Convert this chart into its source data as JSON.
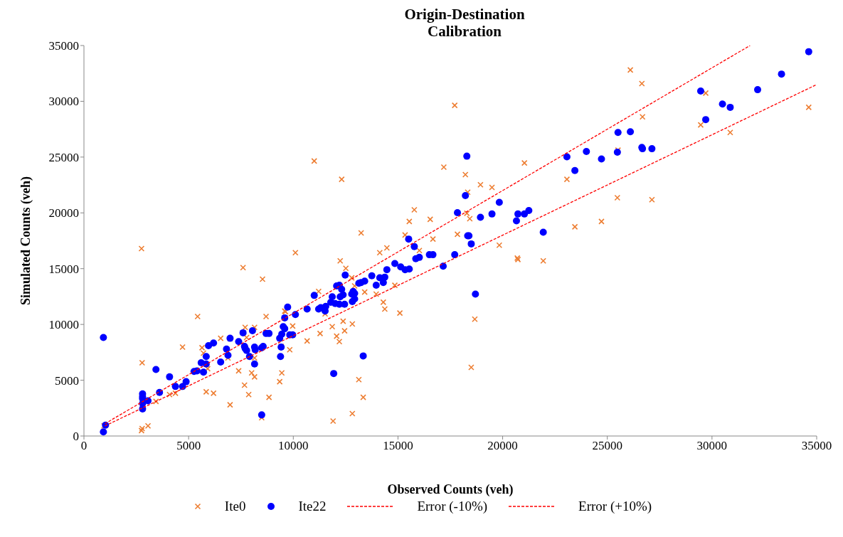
{
  "chart_data": {
    "type": "scatter",
    "title": "Origin-Destination\nCalibration",
    "xlabel": "Observed Counts (veh)",
    "ylabel": "Simulated Counts (veh)",
    "xlim": [
      0,
      35000
    ],
    "ylim": [
      0,
      35000
    ],
    "xticks": [
      0,
      5000,
      10000,
      15000,
      20000,
      25000,
      30000,
      35000
    ],
    "yticks": [
      0,
      5000,
      10000,
      15000,
      20000,
      25000,
      30000,
      35000
    ],
    "grid": false,
    "legend": "bottom",
    "series": [
      {
        "name": "Ite0",
        "color": "#ed7d31",
        "marker": "cross",
        "x": [
          7600,
          8530,
          5430,
          4710,
          2780,
          6530,
          5640,
          5710,
          9590,
          8700,
          9970,
          7700,
          8150,
          7770,
          6880,
          7390,
          8010,
          8150,
          9420,
          9830,
          9450,
          9350,
          7670,
          7870,
          8840,
          8490,
          6980,
          6190,
          5840,
          4370,
          4090,
          3440,
          2750,
          2780,
          3060,
          960,
          5910,
          8150,
          13240,
          10100,
          12240,
          12510,
          12790,
          14130,
          14470,
          15340,
          16020,
          16670,
          17840,
          12930,
          13410,
          14850,
          13960,
          14300,
          14370,
          15090,
          11210,
          11520,
          12380,
          12820,
          11860,
          12450,
          11280,
          12070,
          12200,
          10660,
          9630,
          13130,
          13340,
          12820,
          11900,
          17710,
          11000,
          12310,
          17190,
          18220,
          18940,
          19490,
          21040,
          18330,
          18290,
          18430,
          16540,
          15780,
          15540,
          19840,
          20700,
          20730,
          26100,
          26650,
          29700,
          26680,
          29460,
          34620,
          30870,
          25510,
          23070,
          25480,
          27130,
          24720,
          23450,
          21940,
          18670,
          18500,
          2750
        ],
        "values": [
          15090,
          14060,
          10710,
          7970,
          6570,
          8760,
          7910,
          7430,
          11200,
          10710,
          9860,
          9740,
          9740,
          8830,
          7000,
          5840,
          5660,
          5300,
          8030,
          7730,
          5660,
          4870,
          4560,
          3710,
          3470,
          1640,
          2800,
          3830,
          3960,
          3830,
          3710,
          3100,
          490,
          670,
          910,
          910,
          6030,
          7000,
          18200,
          16430,
          15700,
          15030,
          14180,
          16430,
          16860,
          18020,
          16620,
          17650,
          18080,
          13450,
          12900,
          13510,
          12720,
          11990,
          11380,
          11020,
          12960,
          10950,
          10290,
          10040,
          9800,
          9430,
          9190,
          8950,
          8460,
          8520,
          11140,
          5050,
          3470,
          2010,
          1340,
          29640,
          24650,
          23010,
          24100,
          23430,
          22520,
          22280,
          24470,
          21850,
          19960,
          19480,
          19420,
          20270,
          19230,
          17100,
          15950,
          15820,
          32810,
          31590,
          30740,
          28610,
          27880,
          29460,
          27210,
          25620,
          23010,
          21360,
          21180,
          19230,
          18750,
          15700,
          10470,
          6150,
          16800
        ]
      },
      {
        "name": "Ite22",
        "color": "#0000ff",
        "marker": "circle",
        "x": [
          930,
          930,
          1030,
          2800,
          2800,
          2800,
          2800,
          2800,
          3060,
          3440,
          3610,
          4090,
          4370,
          4710,
          4880,
          5260,
          5400,
          5710,
          5600,
          5840,
          5840,
          5950,
          6190,
          6530,
          6810,
          6880,
          6980,
          7390,
          7600,
          7670,
          7700,
          7770,
          7910,
          8050,
          8150,
          8180,
          8150,
          8490,
          8560,
          8490,
          8700,
          8840,
          9350,
          9420,
          9390,
          9450,
          9520,
          9590,
          9590,
          9730,
          9830,
          9970,
          10100,
          11930,
          13340,
          11000,
          10660,
          11210,
          11310,
          11520,
          11550,
          11860,
          11790,
          12000,
          12200,
          12450,
          12070,
          12200,
          12310,
          12240,
          12380,
          12480,
          12790,
          12860,
          12930,
          12930,
          12820,
          13130,
          13240,
          13410,
          13750,
          13960,
          14130,
          14300,
          14370,
          14470,
          14850,
          15130,
          15340,
          15540,
          15510,
          15780,
          15850,
          16020,
          16500,
          16670,
          17160,
          17710,
          18290,
          18220,
          17840,
          18940,
          19490,
          19840,
          20730,
          20660,
          21040,
          21250,
          18330,
          18390,
          18500,
          18700,
          21940,
          23070,
          23450,
          24000,
          24720,
          25510,
          25480,
          26100,
          26650,
          26680,
          27130,
          29460,
          29700,
          30500,
          30870,
          32180,
          33320,
          34620
        ],
        "values": [
          8830,
          370,
          970,
          3770,
          3530,
          3350,
          2920,
          2430,
          3160,
          5960,
          3900,
          5300,
          4440,
          4440,
          4870,
          5780,
          5840,
          5720,
          6570,
          6450,
          7120,
          8100,
          8340,
          6630,
          7790,
          7240,
          8760,
          8460,
          9250,
          8030,
          7850,
          7670,
          7120,
          9430,
          7970,
          7730,
          6450,
          7910,
          8030,
          1890,
          9190,
          9190,
          8760,
          7970,
          7120,
          9130,
          9800,
          9620,
          10590,
          11560,
          9070,
          9070,
          10890,
          5600,
          7180,
          12600,
          11380,
          11380,
          11500,
          11200,
          11620,
          12480,
          11990,
          11870,
          11810,
          11810,
          13450,
          13510,
          13150,
          12480,
          12660,
          14420,
          12720,
          12960,
          12780,
          12290,
          12050,
          13690,
          13760,
          13880,
          14360,
          13510,
          14180,
          13760,
          14240,
          14910,
          15460,
          15160,
          14910,
          14970,
          17650,
          16980,
          15890,
          16010,
          16250,
          16250,
          15220,
          16250,
          25080,
          21550,
          20020,
          19600,
          19900,
          20940,
          19900,
          19290,
          19900,
          20210,
          17950,
          17950,
          17220,
          12720,
          18260,
          25020,
          23800,
          25500,
          24830,
          27210,
          25440,
          27270,
          25870,
          25750,
          25750,
          30920,
          28360,
          29760,
          29460,
          31040,
          32440,
          34450
        ]
      },
      {
        "name": "Error (-10%)",
        "type": "line",
        "color": "#ff0000",
        "line_style": "dashed",
        "marker": "none",
        "x": [
          1000,
          35000
        ],
        "values": [
          900,
          31500
        ]
      },
      {
        "name": "Error (+10%)",
        "type": "line",
        "color": "#ff0000",
        "line_style": "dashed",
        "marker": "none",
        "x": [
          1000,
          31818
        ],
        "values": [
          1100,
          35000
        ]
      }
    ]
  }
}
